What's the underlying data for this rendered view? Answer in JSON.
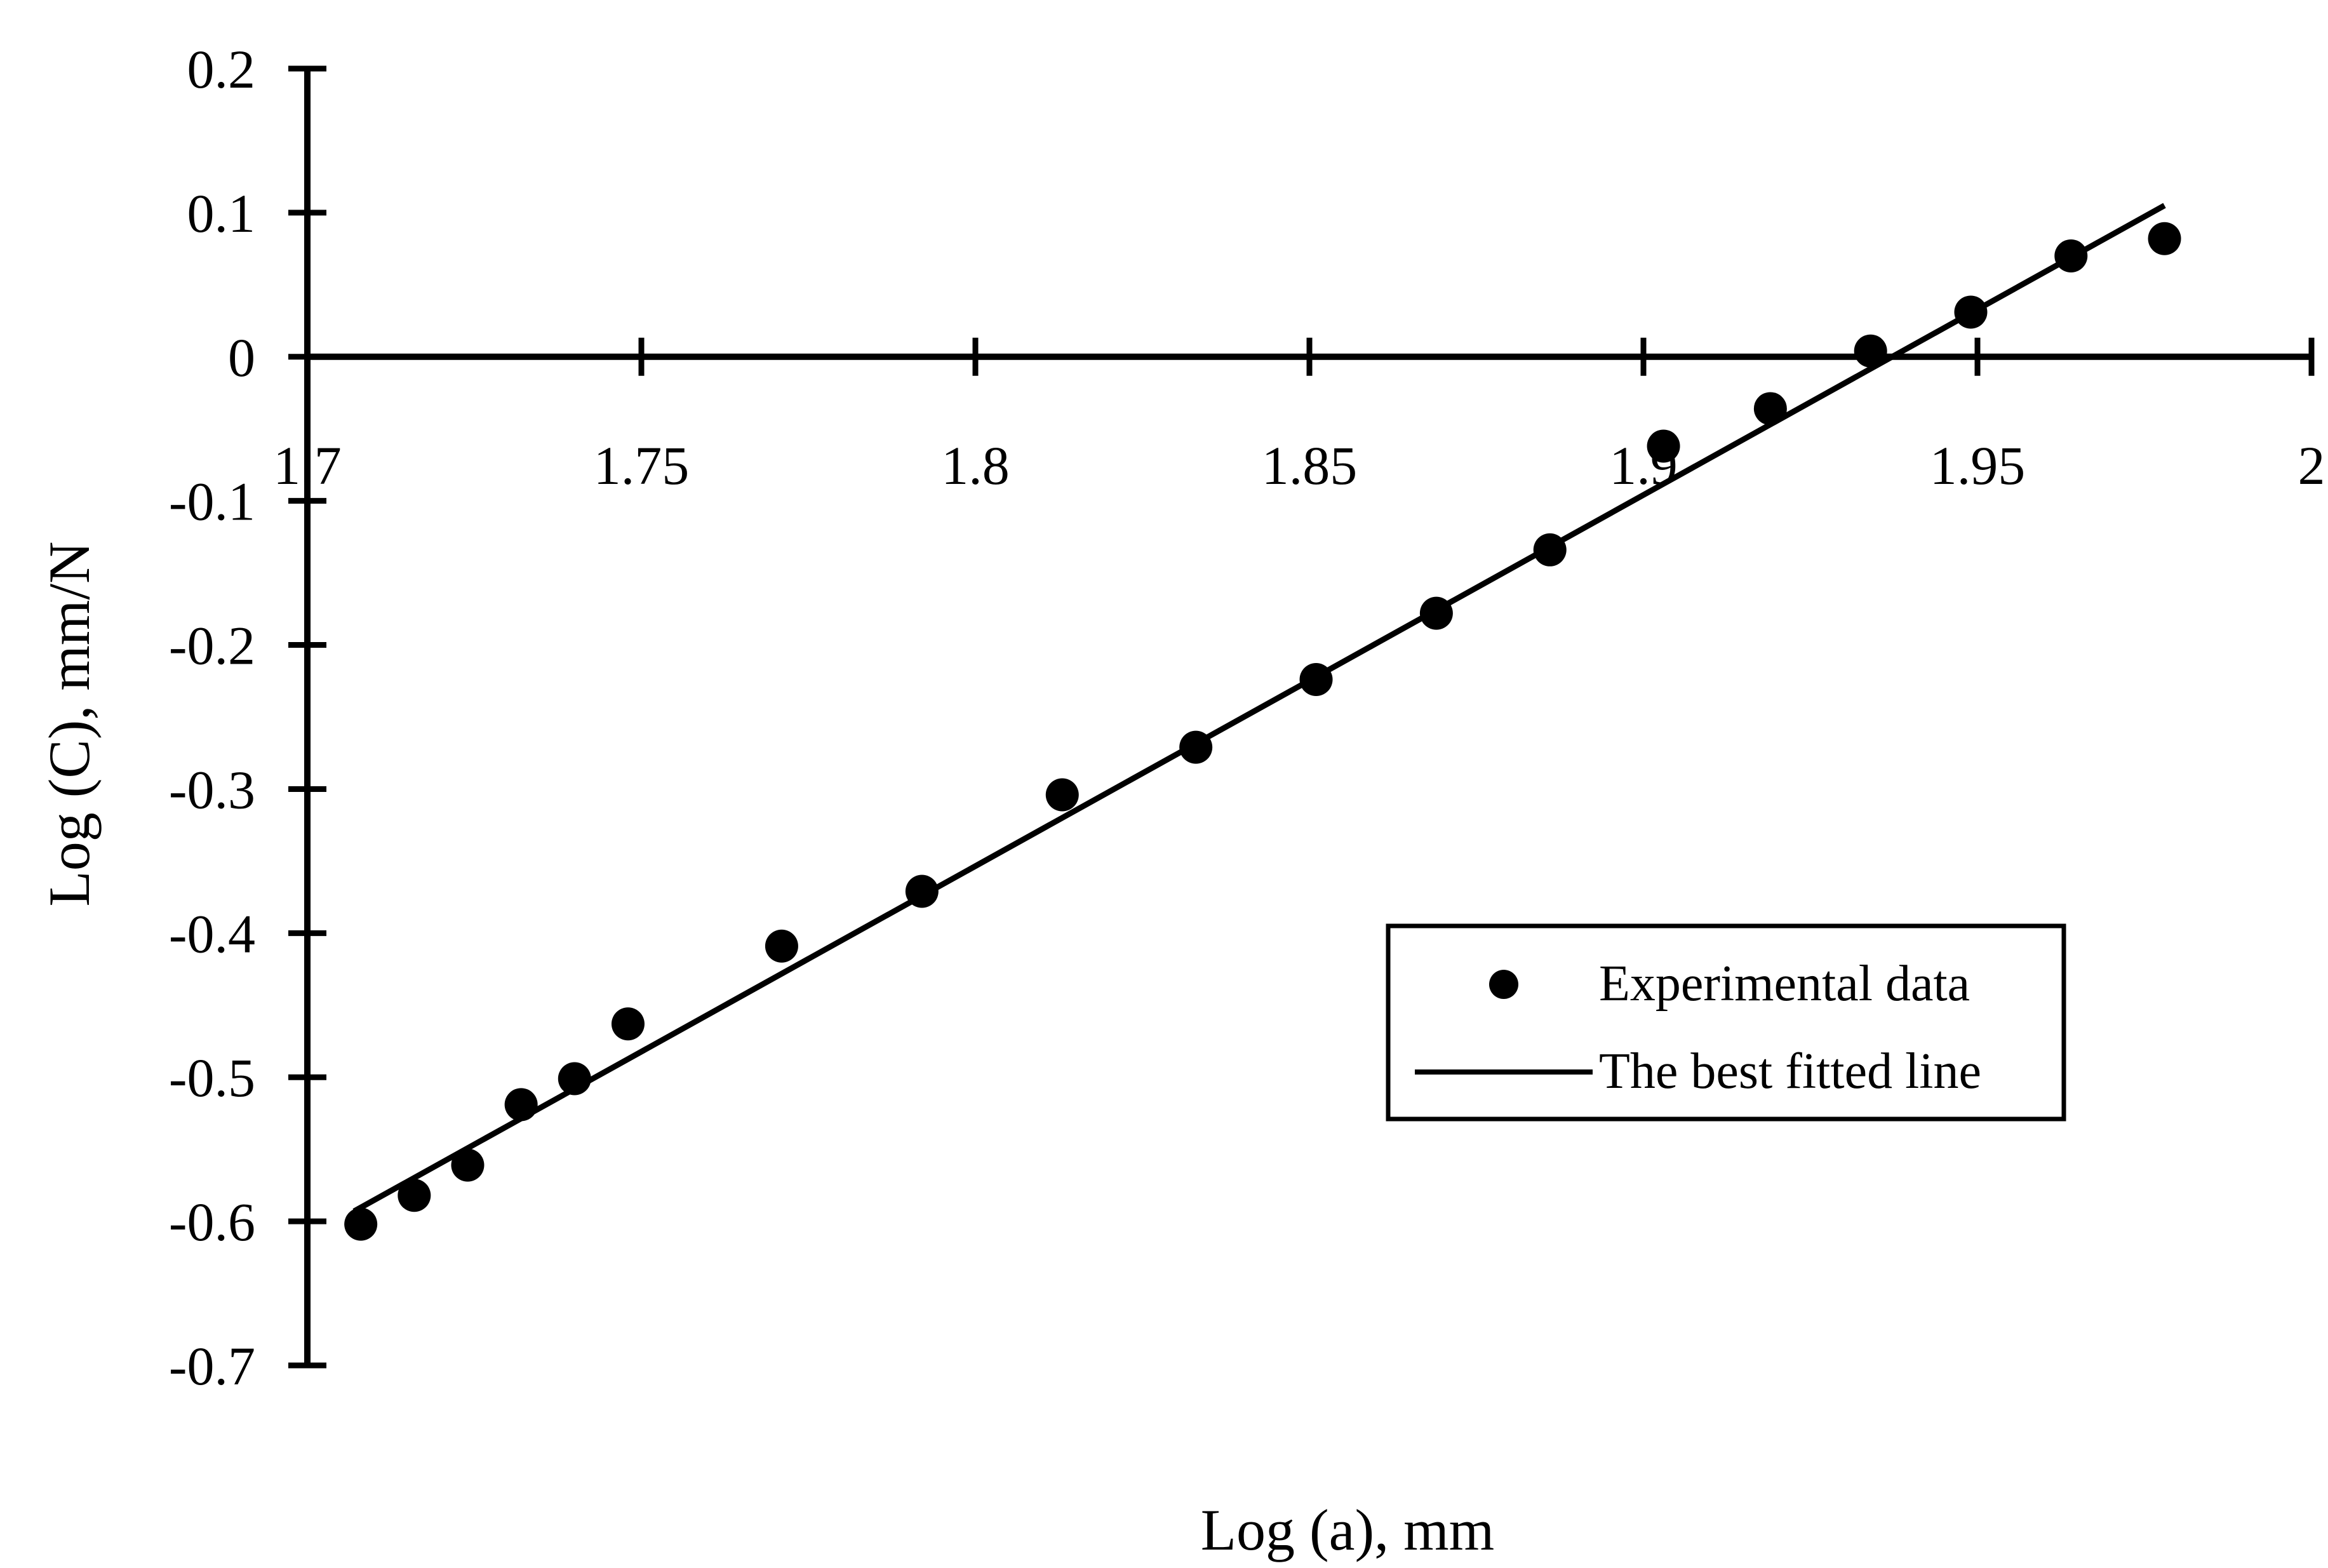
{
  "chart_data": {
    "type": "scatter",
    "xlabel": "Log (a), mm",
    "ylabel": "Log (C), mm/N",
    "xlim": [
      1.7,
      2.0
    ],
    "ylim": [
      -0.7,
      0.2
    ],
    "x_ticks": [
      "1.7",
      "1.75",
      "1.8",
      "1.85",
      "1.9",
      "1.95",
      "2"
    ],
    "y_ticks": [
      "0.2",
      "0.1",
      "0",
      "-0.1",
      "-0.2",
      "-0.3",
      "-0.4",
      "-0.5",
      "-0.6",
      "-0.7"
    ],
    "legend": {
      "position": "center-right",
      "entries": [
        "Experimental data",
        "The best fitted line"
      ]
    },
    "series": [
      {
        "name": "Experimental data",
        "type": "scatter",
        "points": [
          {
            "x": 1.708,
            "y": -0.602
          },
          {
            "x": 1.716,
            "y": -0.582
          },
          {
            "x": 1.724,
            "y": -0.561
          },
          {
            "x": 1.732,
            "y": -0.519
          },
          {
            "x": 1.74,
            "y": -0.501
          },
          {
            "x": 1.748,
            "y": -0.463
          },
          {
            "x": 1.771,
            "y": -0.409
          },
          {
            "x": 1.792,
            "y": -0.371
          },
          {
            "x": 1.813,
            "y": -0.304
          },
          {
            "x": 1.833,
            "y": -0.271
          },
          {
            "x": 1.851,
            "y": -0.224
          },
          {
            "x": 1.869,
            "y": -0.178
          },
          {
            "x": 1.886,
            "y": -0.134
          },
          {
            "x": 1.903,
            "y": -0.062
          },
          {
            "x": 1.919,
            "y": -0.036
          },
          {
            "x": 1.934,
            "y": 0.004
          },
          {
            "x": 1.949,
            "y": 0.031
          },
          {
            "x": 1.964,
            "y": 0.07
          },
          {
            "x": 1.978,
            "y": 0.082
          }
        ]
      },
      {
        "name": "The best fitted line",
        "type": "line",
        "points": [
          {
            "x": 1.707,
            "y": -0.593
          },
          {
            "x": 1.978,
            "y": 0.105
          }
        ]
      }
    ]
  }
}
